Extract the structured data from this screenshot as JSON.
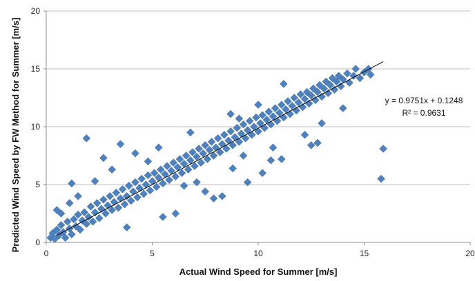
{
  "chart_data": {
    "type": "scatter",
    "title": "",
    "xlabel": "Actual Wind Speed for Summer [m/s]",
    "ylabel": "Predicted Wind Speed by FW Method for Summer [m/s]",
    "xlim": [
      0,
      20
    ],
    "ylim": [
      0,
      20
    ],
    "xticks": [
      0,
      5,
      10,
      15,
      20
    ],
    "yticks": [
      0,
      5,
      10,
      15,
      20
    ],
    "x_tick_labels": [
      "0",
      "5",
      "10",
      "15",
      "20"
    ],
    "y_tick_labels": [
      "0",
      "5",
      "10",
      "15",
      "20"
    ],
    "grid": "horizontal",
    "legend": "none",
    "marker": "diamond",
    "series": [
      {
        "color": "#4f81bd",
        "points": [
          [
            0.2,
            0.4
          ],
          [
            0.3,
            0.8
          ],
          [
            0.4,
            0.3
          ],
          [
            0.5,
            1.1
          ],
          [
            0.6,
            0.6
          ],
          [
            0.7,
            1.5
          ],
          [
            0.8,
            0.9
          ],
          [
            0.9,
            0.4
          ],
          [
            1.0,
            1.8
          ],
          [
            1.1,
            1.2
          ],
          [
            1.2,
            0.7
          ],
          [
            1.3,
            2.0
          ],
          [
            1.4,
            1.4
          ],
          [
            1.5,
            2.4
          ],
          [
            1.6,
            1.1
          ],
          [
            1.7,
            1.9
          ],
          [
            1.8,
            2.6
          ],
          [
            1.9,
            1.6
          ],
          [
            2.0,
            2.2
          ],
          [
            2.1,
            3.1
          ],
          [
            2.2,
            1.8
          ],
          [
            2.3,
            2.6
          ],
          [
            2.4,
            3.4
          ],
          [
            2.5,
            2.1
          ],
          [
            2.6,
            2.9
          ],
          [
            2.7,
            3.7
          ],
          [
            2.8,
            2.5
          ],
          [
            2.9,
            3.2
          ],
          [
            3.0,
            4.0
          ],
          [
            3.1,
            2.8
          ],
          [
            3.2,
            3.5
          ],
          [
            3.3,
            4.3
          ],
          [
            3.4,
            3.0
          ],
          [
            3.5,
            3.8
          ],
          [
            3.6,
            4.6
          ],
          [
            3.7,
            3.3
          ],
          [
            3.8,
            4.0
          ],
          [
            3.9,
            4.9
          ],
          [
            4.0,
            3.6
          ],
          [
            4.1,
            4.4
          ],
          [
            4.2,
            5.2
          ],
          [
            4.3,
            3.9
          ],
          [
            4.4,
            4.7
          ],
          [
            4.5,
            5.5
          ],
          [
            4.6,
            4.2
          ],
          [
            4.7,
            5.0
          ],
          [
            4.8,
            5.8
          ],
          [
            4.9,
            4.5
          ],
          [
            5.0,
            5.3
          ],
          [
            5.1,
            6.0
          ],
          [
            5.2,
            4.8
          ],
          [
            5.3,
            5.6
          ],
          [
            5.4,
            6.3
          ],
          [
            5.5,
            5.1
          ],
          [
            5.6,
            5.9
          ],
          [
            5.7,
            6.6
          ],
          [
            5.8,
            5.4
          ],
          [
            5.9,
            6.2
          ],
          [
            6.0,
            6.9
          ],
          [
            6.1,
            5.7
          ],
          [
            6.2,
            6.5
          ],
          [
            6.3,
            7.2
          ],
          [
            6.4,
            6.0
          ],
          [
            6.5,
            6.8
          ],
          [
            6.6,
            7.5
          ],
          [
            6.7,
            6.3
          ],
          [
            6.8,
            7.1
          ],
          [
            6.9,
            7.8
          ],
          [
            7.0,
            6.6
          ],
          [
            7.1,
            7.4
          ],
          [
            7.2,
            8.1
          ],
          [
            7.3,
            6.9
          ],
          [
            7.4,
            7.7
          ],
          [
            7.5,
            8.4
          ],
          [
            7.6,
            7.2
          ],
          [
            7.7,
            8.0
          ],
          [
            7.8,
            8.7
          ],
          [
            7.9,
            7.5
          ],
          [
            8.0,
            8.2
          ],
          [
            8.1,
            9.0
          ],
          [
            8.2,
            7.8
          ],
          [
            8.3,
            8.5
          ],
          [
            8.4,
            9.3
          ],
          [
            8.5,
            8.1
          ],
          [
            8.6,
            8.8
          ],
          [
            8.7,
            9.6
          ],
          [
            8.8,
            8.4
          ],
          [
            8.9,
            9.1
          ],
          [
            9.0,
            9.9
          ],
          [
            9.1,
            8.7
          ],
          [
            9.2,
            9.4
          ],
          [
            9.3,
            10.2
          ],
          [
            9.4,
            9.0
          ],
          [
            9.5,
            9.7
          ],
          [
            9.6,
            10.5
          ],
          [
            9.7,
            9.3
          ],
          [
            9.8,
            10.0
          ],
          [
            9.9,
            10.8
          ],
          [
            10.0,
            9.6
          ],
          [
            10.1,
            10.3
          ],
          [
            10.2,
            11.0
          ],
          [
            10.3,
            9.9
          ],
          [
            10.4,
            10.6
          ],
          [
            10.5,
            11.3
          ],
          [
            10.6,
            10.2
          ],
          [
            10.7,
            10.9
          ],
          [
            10.8,
            11.6
          ],
          [
            10.9,
            10.5
          ],
          [
            11.0,
            11.2
          ],
          [
            11.1,
            11.9
          ],
          [
            11.2,
            10.8
          ],
          [
            11.3,
            11.5
          ],
          [
            11.4,
            12.2
          ],
          [
            11.5,
            11.1
          ],
          [
            11.6,
            11.8
          ],
          [
            11.7,
            12.5
          ],
          [
            11.8,
            11.4
          ],
          [
            11.9,
            12.1
          ],
          [
            12.0,
            12.8
          ],
          [
            12.1,
            11.7
          ],
          [
            12.2,
            12.4
          ],
          [
            12.3,
            13.0
          ],
          [
            12.4,
            12.0
          ],
          [
            12.5,
            12.7
          ],
          [
            12.6,
            13.3
          ],
          [
            12.7,
            12.3
          ],
          [
            12.8,
            13.0
          ],
          [
            12.9,
            13.6
          ],
          [
            13.0,
            12.6
          ],
          [
            13.1,
            13.3
          ],
          [
            13.2,
            13.9
          ],
          [
            13.3,
            12.9
          ],
          [
            13.4,
            13.6
          ],
          [
            13.5,
            14.2
          ],
          [
            13.6,
            13.2
          ],
          [
            13.7,
            13.9
          ],
          [
            13.8,
            14.4
          ],
          [
            13.9,
            13.5
          ],
          [
            14.0,
            14.1
          ],
          [
            14.2,
            14.6
          ],
          [
            14.3,
            13.8
          ],
          [
            14.5,
            14.4
          ],
          [
            14.6,
            15.0
          ],
          [
            14.8,
            14.2
          ],
          [
            15.0,
            14.7
          ],
          [
            15.2,
            15.0
          ],
          [
            15.3,
            14.5
          ],
          [
            1.9,
            9.0
          ],
          [
            3.5,
            8.5
          ],
          [
            2.7,
            7.3
          ],
          [
            1.2,
            5.1
          ],
          [
            4.2,
            7.7
          ],
          [
            5.5,
            2.2
          ],
          [
            6.1,
            2.5
          ],
          [
            3.8,
            1.3
          ],
          [
            7.5,
            4.4
          ],
          [
            7.9,
            3.8
          ],
          [
            8.3,
            4.0
          ],
          [
            9.5,
            5.2
          ],
          [
            10.2,
            6.0
          ],
          [
            10.6,
            7.1
          ],
          [
            11.1,
            7.2
          ],
          [
            12.2,
            9.3
          ],
          [
            12.5,
            8.4
          ],
          [
            12.8,
            8.6
          ],
          [
            13.0,
            10.3
          ],
          [
            14.0,
            11.6
          ],
          [
            15.9,
            8.1
          ],
          [
            15.8,
            5.5
          ],
          [
            11.2,
            13.7
          ],
          [
            8.7,
            11.1
          ],
          [
            10.0,
            11.9
          ],
          [
            9.1,
            10.7
          ],
          [
            6.8,
            9.5
          ],
          [
            5.3,
            8.2
          ],
          [
            4.8,
            7.0
          ],
          [
            3.1,
            6.3
          ],
          [
            2.3,
            5.3
          ],
          [
            0.7,
            2.5
          ],
          [
            0.5,
            2.8
          ],
          [
            1.1,
            3.4
          ],
          [
            1.5,
            4.0
          ],
          [
            6.5,
            4.9
          ],
          [
            7.1,
            5.2
          ],
          [
            8.8,
            6.4
          ],
          [
            9.3,
            7.5
          ],
          [
            10.7,
            8.2
          ]
        ]
      }
    ],
    "trendline": {
      "x": [
        0.5,
        15.9
      ],
      "color": "#000000"
    },
    "equation": "y = 0.9751x + 0.1248",
    "r_squared": "R² = 0.9631"
  }
}
